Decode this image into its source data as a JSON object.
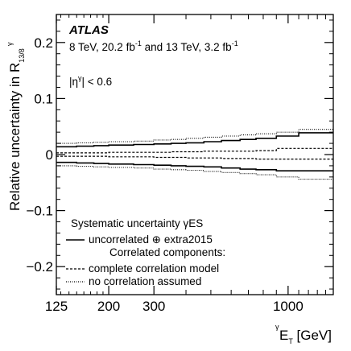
{
  "chart_data": {
    "type": "line",
    "title": "",
    "xlabel": {
      "main": "E",
      "sub": "T",
      "sup": "γ",
      "unit": " [GeV]"
    },
    "ylabel": {
      "main": "Relative uncertainty in R",
      "sub": "13/8",
      "sup": "γ"
    },
    "x_scale": "log",
    "xlim": [
      125,
      1500
    ],
    "ylim": [
      -0.25,
      0.25
    ],
    "x_ticks": [
      125,
      200,
      300,
      1000
    ],
    "x_tick_labels": [
      "125",
      "200",
      "300",
      "1000"
    ],
    "y_ticks": [
      0.2,
      0.1,
      0,
      -0.1,
      -0.2
    ],
    "y_tick_labels": [
      "0.2",
      "0.1",
      "0",
      "−0.1",
      "−0.2"
    ],
    "annotations": {
      "experiment": "ATLAS",
      "energy_prefix": "8 TeV, 20.2 fb",
      "energy_sup1": "-1",
      "energy_middle": " and 13 TeV, 3.2 fb",
      "energy_sup2": "-1",
      "eta_prefix": "|η",
      "eta_sup": "γ",
      "eta_suffix": "| < 0.6"
    },
    "bin_edges": [
      125,
      150,
      175,
      200,
      250,
      300,
      350,
      400,
      470,
      550,
      650,
      750,
      900,
      1100,
      1500
    ],
    "series": [
      {
        "name": "uncorrelated ⊕ extra2015",
        "style": "solid",
        "upper": [
          0.014,
          0.015,
          0.016,
          0.017,
          0.018,
          0.019,
          0.02,
          0.021,
          0.023,
          0.025,
          0.027,
          0.029,
          0.033,
          0.039
        ],
        "lower": [
          -0.014,
          -0.015,
          -0.016,
          -0.017,
          -0.018,
          -0.019,
          -0.02,
          -0.021,
          -0.022,
          -0.024,
          -0.026,
          -0.027,
          -0.029,
          -0.029
        ]
      },
      {
        "name": "complete correlation model",
        "style": "dashed",
        "upper": [
          0.003,
          0.003,
          0.003,
          0.004,
          0.004,
          0.004,
          0.005,
          0.005,
          0.006,
          0.006,
          0.006,
          0.007,
          0.011,
          0.011
        ],
        "lower": [
          -0.003,
          -0.003,
          -0.003,
          -0.004,
          -0.004,
          -0.005,
          -0.005,
          -0.006,
          -0.006,
          -0.007,
          -0.007,
          -0.008,
          -0.008,
          -0.008
        ]
      },
      {
        "name": "no correlation assumed",
        "style": "dotted",
        "upper": [
          0.02,
          0.021,
          0.022,
          0.023,
          0.024,
          0.026,
          0.027,
          0.029,
          0.031,
          0.033,
          0.035,
          0.037,
          0.04,
          0.045
        ],
        "lower": [
          -0.02,
          -0.021,
          -0.022,
          -0.023,
          -0.024,
          -0.026,
          -0.027,
          -0.028,
          -0.03,
          -0.032,
          -0.034,
          -0.036,
          -0.04,
          -0.044
        ]
      }
    ],
    "legend": {
      "title": "Systematic uncertainty γES",
      "sub_header": "Correlated components:",
      "placement": "bottom-left"
    }
  }
}
